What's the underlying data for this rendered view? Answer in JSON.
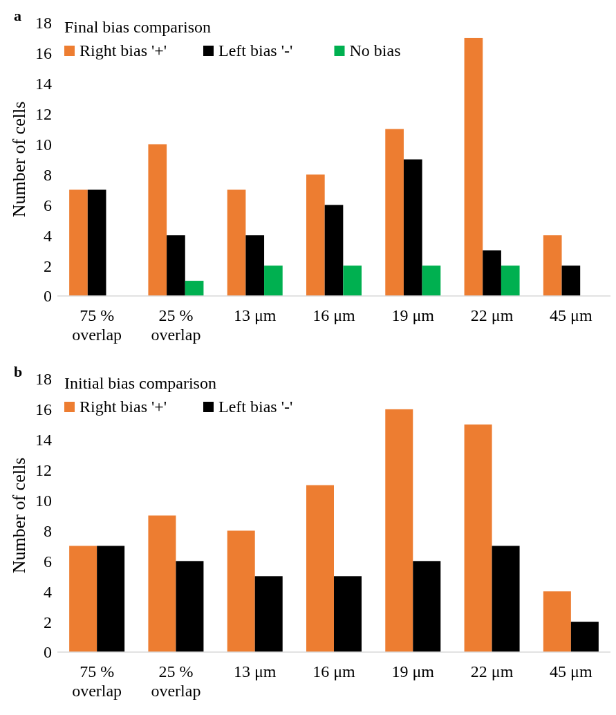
{
  "chart_data": [
    {
      "type": "bar",
      "title": "Final bias comparison",
      "ylabel": "Number of cells",
      "annotations": [
        "a"
      ],
      "categories": [
        "75 %\noverlap",
        "25 %\noverlap",
        "13 μm",
        "16 μm",
        "19 μm",
        "22 μm",
        "45 μm"
      ],
      "series": [
        {
          "name": "Right bias '+'",
          "color": "#ed7d31",
          "values": [
            7,
            10,
            7,
            8,
            11,
            17,
            4
          ]
        },
        {
          "name": "Left bias '-'",
          "color": "#000000",
          "values": [
            7,
            4,
            4,
            6,
            9,
            3,
            2
          ]
        },
        {
          "name": "No bias",
          "color": "#00b050",
          "values": [
            0,
            1,
            2,
            2,
            2,
            2,
            0
          ]
        }
      ],
      "ylim": [
        0,
        18
      ],
      "yticks": [
        0,
        2,
        4,
        6,
        8,
        10,
        12,
        14,
        16,
        18
      ],
      "legend": "top left"
    },
    {
      "type": "bar",
      "title": "Initial bias comparison",
      "ylabel": "Number of cells",
      "annotations": [
        "b"
      ],
      "categories": [
        "75 %\noverlap",
        "25 %\noverlap",
        "13 μm",
        "16 μm",
        "19 μm",
        "22 μm",
        "45 μm"
      ],
      "series": [
        {
          "name": "Right bias '+'",
          "color": "#ed7d31",
          "values": [
            7,
            9,
            8,
            11,
            16,
            15,
            4
          ]
        },
        {
          "name": "Left bias '-'",
          "color": "#000000",
          "values": [
            7,
            6,
            5,
            5,
            6,
            7,
            2
          ]
        }
      ],
      "ylim": [
        0,
        18
      ],
      "yticks": [
        0,
        2,
        4,
        6,
        8,
        10,
        12,
        14,
        16,
        18
      ],
      "legend": "top left"
    }
  ]
}
